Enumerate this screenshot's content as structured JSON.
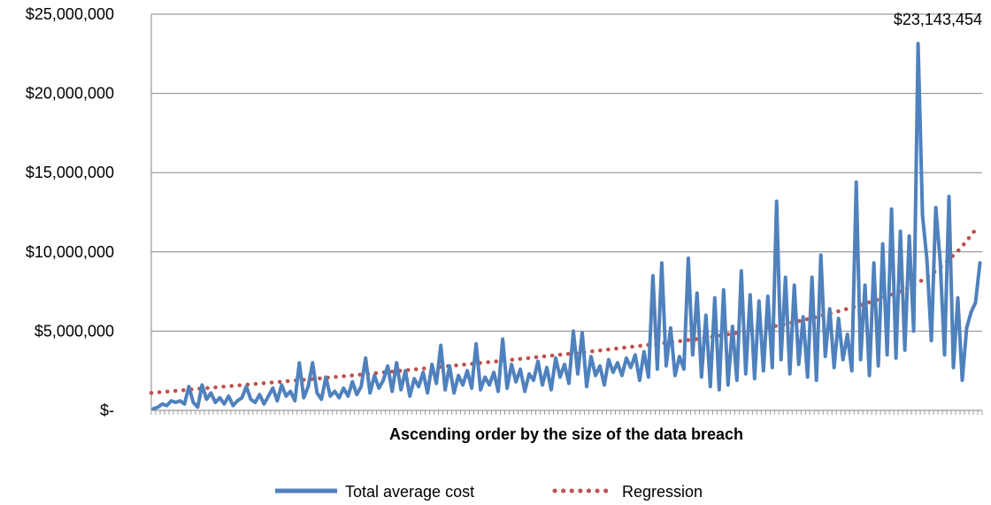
{
  "chart_data": {
    "type": "line",
    "title": "",
    "xlabel": "Ascending order by the size of the data breach",
    "ylabel": "",
    "ylim": [
      0,
      25000000
    ],
    "y_ticks": [
      0,
      5000000,
      10000000,
      15000000,
      20000000,
      25000000
    ],
    "y_tick_labels": [
      "$-",
      "$5,000,000",
      "$10,000,000",
      "$15,000,000",
      "$20,000,000",
      "$25,000,000"
    ],
    "grid": true,
    "legend_position": "bottom",
    "annotation": "$23,143,454",
    "colors": {
      "series": "#4f81bd",
      "regression": "#c0504d",
      "grid": "#868686",
      "axis": "#868686"
    },
    "series": [
      {
        "name": "Total average cost",
        "style": "solid",
        "values": [
          100000,
          200000,
          400000,
          300000,
          600000,
          500000,
          600000,
          400000,
          1500000,
          500000,
          200000,
          1600000,
          700000,
          1100000,
          500000,
          800000,
          400000,
          900000,
          300000,
          600000,
          800000,
          1500000,
          700000,
          500000,
          1000000,
          400000,
          900000,
          1400000,
          600000,
          1600000,
          900000,
          1200000,
          600000,
          3000000,
          800000,
          1500000,
          3000000,
          1100000,
          700000,
          2100000,
          900000,
          1200000,
          800000,
          1400000,
          900000,
          1800000,
          1000000,
          1500000,
          3300000,
          1100000,
          2200000,
          1400000,
          1900000,
          2800000,
          1200000,
          3000000,
          1300000,
          2500000,
          900000,
          2000000,
          1500000,
          2400000,
          1100000,
          2900000,
          1700000,
          4100000,
          1300000,
          2800000,
          1100000,
          2200000,
          1600000,
          2500000,
          1400000,
          4200000,
          1300000,
          2100000,
          1600000,
          2400000,
          1200000,
          4500000,
          1400000,
          2900000,
          1800000,
          2600000,
          1200000,
          2300000,
          1900000,
          3100000,
          1600000,
          2700000,
          1300000,
          3300000,
          2100000,
          2900000,
          1700000,
          5000000,
          2300000,
          4900000,
          1500000,
          3400000,
          2200000,
          2800000,
          1600000,
          3200000,
          2400000,
          3000000,
          2200000,
          3300000,
          2700000,
          3500000,
          1900000,
          3700000,
          2100000,
          8500000,
          2600000,
          9300000,
          2800000,
          5200000,
          2200000,
          3400000,
          2600000,
          9600000,
          3500000,
          7400000,
          2100000,
          6000000,
          1500000,
          7100000,
          1300000,
          7600000,
          1600000,
          5300000,
          1900000,
          8800000,
          2300000,
          7300000,
          2000000,
          6900000,
          2500000,
          7200000,
          2700000,
          13200000,
          3200000,
          8400000,
          2300000,
          7900000,
          2900000,
          5900000,
          2100000,
          8400000,
          1900000,
          9800000,
          3400000,
          6400000,
          2700000,
          5800000,
          3200000,
          4800000,
          2500000,
          14400000,
          3200000,
          7900000,
          2200000,
          9300000,
          2800000,
          10500000,
          3500000,
          12700000,
          3300000,
          11300000,
          3800000,
          11000000,
          5000000,
          23143454,
          12300000,
          9500000,
          4400000,
          12800000,
          9400000,
          3500000,
          13500000,
          2700000,
          7100000,
          1900000,
          5200000,
          6200000,
          6800000,
          9300000
        ]
      },
      {
        "name": "Regression",
        "style": "dotted",
        "values": [
          1100000,
          1190000,
          1280000,
          1370000,
          1460000,
          1550000,
          1640000,
          1730000,
          1820000,
          1910000,
          2000000,
          2090000,
          2190000,
          2290000,
          2390000,
          2490000,
          2590000,
          2690000,
          2790000,
          2890000,
          3000000,
          3100000,
          3210000,
          3320000,
          3430000,
          3540000,
          3650000,
          3760000,
          3880000,
          4000000,
          4120000,
          4240000,
          4370000,
          4500000,
          4650000,
          4810000,
          4980000,
          5160000,
          5360000,
          5580000,
          5820000,
          6080000,
          6360000,
          6660000,
          6990000,
          7360000,
          7800000,
          8400000,
          9200000,
          10200000,
          11500000
        ]
      }
    ]
  }
}
